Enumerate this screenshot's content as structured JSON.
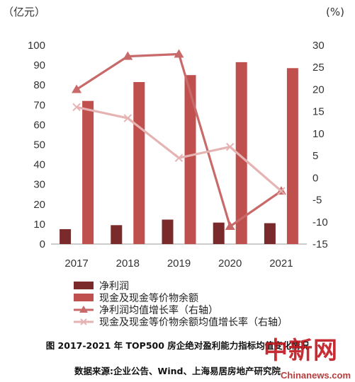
{
  "chart_data": {
    "type": "bar",
    "categories": [
      "2017",
      "2018",
      "2019",
      "2020",
      "2021"
    ],
    "left_axis": {
      "unit": "（亿元）",
      "range": [
        0,
        100
      ],
      "step": 10
    },
    "right_axis": {
      "unit": "(%)",
      "range": [
        -15,
        30
      ],
      "step": 5
    },
    "series": [
      {
        "name": "净利润",
        "type": "bar",
        "axis": "left",
        "color": "#7a2a2a",
        "values": [
          7.5,
          9.5,
          12.3,
          10.8,
          10.5
        ]
      },
      {
        "name": "现金及现金等价物余额",
        "type": "bar",
        "axis": "left",
        "color": "#c0504d",
        "values": [
          72,
          81.5,
          85,
          91.5,
          88.5
        ]
      },
      {
        "name": "净利润均值增长率（右轴）",
        "type": "line",
        "axis": "right",
        "marker": "triangle",
        "color": "#c96a6a",
        "values": [
          20,
          27.5,
          28,
          -11,
          -3
        ]
      },
      {
        "name": "现金及现金等价物余额均值增长率（右轴）",
        "type": "line",
        "axis": "right",
        "marker": "x",
        "color": "#e6b3b3",
        "values": [
          16,
          13.5,
          4.5,
          7,
          -3
        ]
      }
    ],
    "grid": false,
    "legend_position": "bottom"
  },
  "caption": {
    "title": "图  2017-2021 年 TOP500 房企绝对盈利能力指标均值变化情况",
    "source": "数据来源:企业公告、Wind、上海易居房地产研究院"
  },
  "watermark": {
    "cn": "中新网",
    "en": "Chinanews.com"
  }
}
